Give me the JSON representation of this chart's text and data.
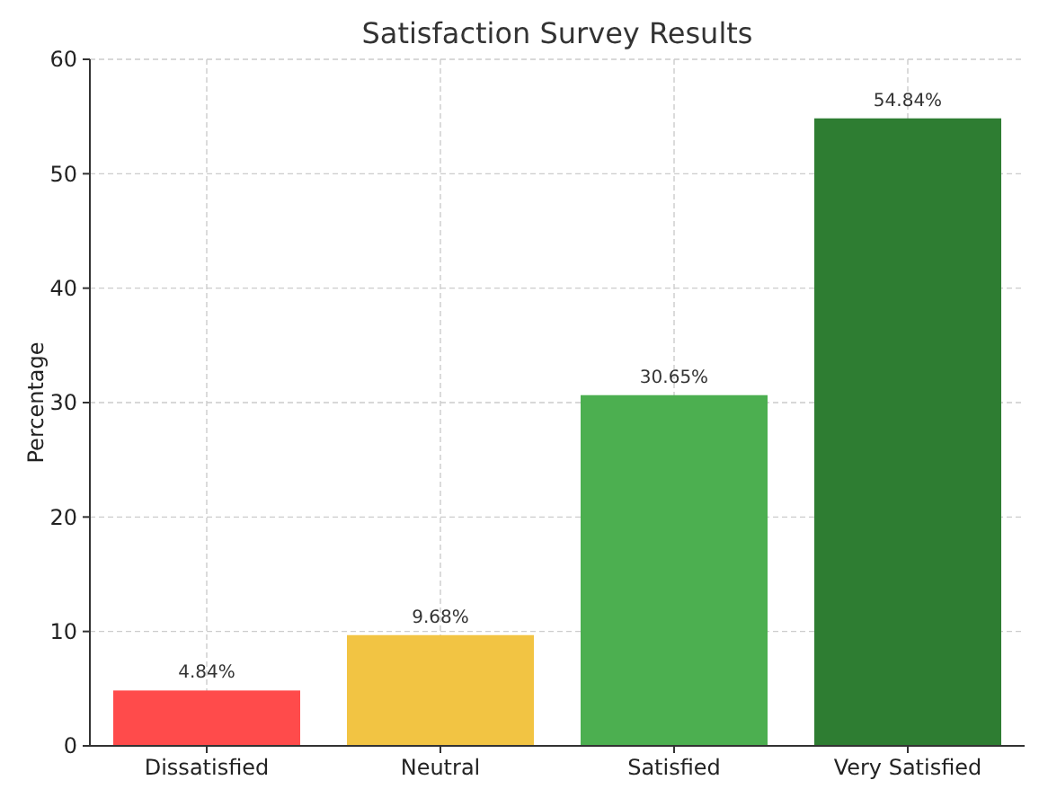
{
  "chart_data": {
    "type": "bar",
    "title": "Satisfaction Survey Results",
    "ylabel": "Percentage",
    "categories": [
      "Dissatisfied",
      "Neutral",
      "Satisfied",
      "Very Satisfied"
    ],
    "values": [
      4.84,
      9.68,
      30.65,
      54.84
    ],
    "colors": [
      "#ff4b4b",
      "#f2c443",
      "#4caf50",
      "#2e7d32"
    ],
    "value_labels": [
      "4.84%",
      "9.68%",
      "30.65%",
      "54.84%"
    ],
    "ylim": [
      0,
      60
    ],
    "yticks": [
      0,
      10,
      20,
      30,
      40,
      50,
      60
    ],
    "grid": true
  }
}
